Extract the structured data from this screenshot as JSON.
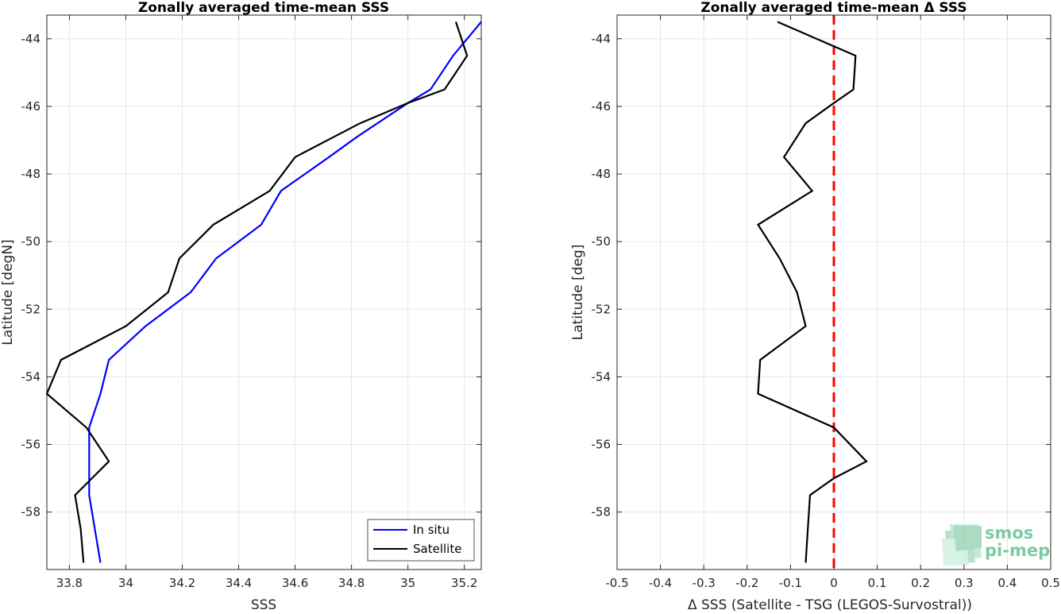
{
  "chart_data": [
    {
      "type": "line",
      "title": "Zonally averaged time-mean SSS",
      "xlabel": "SSS",
      "ylabel": "Latitude [degN]",
      "xlim": [
        33.72,
        35.26
      ],
      "ylim": [
        -59.7,
        -43.3
      ],
      "xticks": [
        33.8,
        34,
        34.2,
        34.4,
        34.6,
        34.8,
        35,
        35.2
      ],
      "xtick_labels": [
        "33.8",
        "34",
        "34.2",
        "34.4",
        "34.6",
        "34.8",
        "35",
        "35.2"
      ],
      "yticks": [
        -44,
        -46,
        -48,
        -50,
        -52,
        -54,
        -56,
        -58
      ],
      "ytick_labels": [
        "-44",
        "-46",
        "-48",
        "-50",
        "-52",
        "-54",
        "-56",
        "-58"
      ],
      "grid": true,
      "legend": "bottom-right",
      "series": [
        {
          "name": "In situ",
          "color": "#0000ff",
          "x": [
            35.26,
            35.16,
            35.08,
            35.0,
            34.82,
            34.72,
            34.55,
            34.48,
            34.32,
            34.23,
            34.07,
            33.94,
            33.91,
            33.87,
            33.87,
            33.87,
            33.89,
            33.91
          ],
          "y": [
            -43.5,
            -44.5,
            -45.5,
            -45.9,
            -46.9,
            -47.5,
            -48.5,
            -49.5,
            -50.5,
            -51.5,
            -52.5,
            -53.5,
            -54.5,
            -55.5,
            -56.5,
            -57.5,
            -58.5,
            -59.5
          ]
        },
        {
          "name": "Satellite",
          "color": "#000000",
          "x": [
            35.17,
            35.21,
            35.13,
            35.0,
            34.83,
            34.6,
            34.51,
            34.31,
            34.19,
            34.15,
            34.0,
            33.77,
            33.72,
            33.86,
            33.94,
            33.82,
            33.84,
            33.85
          ],
          "y": [
            -43.5,
            -44.5,
            -45.5,
            -45.9,
            -46.5,
            -47.5,
            -48.5,
            -49.5,
            -50.5,
            -51.5,
            -52.5,
            -53.5,
            -54.5,
            -55.5,
            -56.5,
            -57.5,
            -58.5,
            -59.5
          ]
        }
      ]
    },
    {
      "type": "line",
      "title": "Zonally averaged time-mean Δ SSS",
      "xlabel": "Δ SSS (Satellite - TSG (LEGOS-Survostral))",
      "ylabel": "Latitude [deg]",
      "xlim": [
        -0.5,
        0.5
      ],
      "ylim": [
        -59.7,
        -43.3
      ],
      "xticks": [
        -0.5,
        -0.4,
        -0.3,
        -0.2,
        -0.1,
        0,
        0.1,
        0.2,
        0.3,
        0.4,
        0.5
      ],
      "xtick_labels": [
        "-0.5",
        "-0.4",
        "-0.3",
        "-0.2",
        "-0.1",
        "0",
        "0.1",
        "0.2",
        "0.3",
        "0.4",
        "0.5"
      ],
      "yticks": [
        -44,
        -46,
        -48,
        -50,
        -52,
        -54,
        -56,
        -58
      ],
      "ytick_labels": [
        "-44",
        "-46",
        "-48",
        "-50",
        "-52",
        "-54",
        "-56",
        "-58"
      ],
      "grid": true,
      "reference_line": {
        "x": 0,
        "color": "#ff0000",
        "style": "dashed"
      },
      "series": [
        {
          "color": "#000000",
          "x": [
            -0.13,
            0.05,
            0.045,
            0.0,
            -0.065,
            -0.115,
            -0.05,
            -0.175,
            -0.125,
            -0.085,
            -0.065,
            -0.17,
            -0.175,
            0.0,
            0.075,
            0.0,
            -0.055,
            -0.06,
            -0.065
          ],
          "y": [
            -43.5,
            -44.5,
            -45.5,
            -45.9,
            -46.5,
            -47.5,
            -48.5,
            -49.5,
            -50.5,
            -51.5,
            -52.5,
            -53.5,
            -54.5,
            -55.5,
            -56.5,
            -57.0,
            -57.5,
            -58.5,
            -59.5
          ]
        }
      ]
    }
  ],
  "logo": {
    "line1": "smos",
    "line2": "pi-mep",
    "color": "#7fc9a5"
  }
}
